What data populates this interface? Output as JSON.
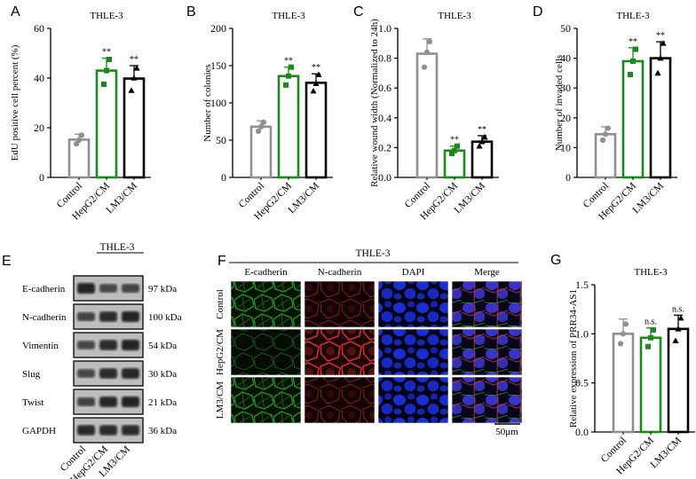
{
  "colors": {
    "control": "#909090",
    "hepg2": "#1a8a1a",
    "lm3": "#000000",
    "panel_label": "#000000"
  },
  "panel_labels": {
    "A": "A",
    "B": "B",
    "C": "C",
    "D": "D",
    "E": "E",
    "F": "F",
    "G": "G"
  },
  "chart_data": [
    {
      "panel": "A",
      "type": "bar",
      "title": "THLE-3",
      "categories": [
        "Control",
        "HepG2/CM",
        "LM3/CM"
      ],
      "values": [
        15.2,
        43.0,
        39.8
      ],
      "errors": [
        2.2,
        5.0,
        5.2
      ],
      "points": [
        [
          13.5,
          15.0,
          17.0
        ],
        [
          37.5,
          43.0,
          47.5
        ],
        [
          35.0,
          40.0,
          44.0
        ]
      ],
      "markers": [
        "circle",
        "square",
        "triangle"
      ],
      "significance": [
        "",
        "**",
        "**"
      ],
      "ylabel": "EdU positive cell percent (%)",
      "ylim": [
        0,
        60
      ],
      "yticks": [
        "0",
        "20",
        "40",
        "60"
      ],
      "grid": false
    },
    {
      "panel": "B",
      "type": "bar",
      "title": "THLE-3",
      "categories": [
        "Control",
        "HepG2/CM",
        "LM3/CM"
      ],
      "values": [
        68,
        136,
        127
      ],
      "errors": [
        8,
        12,
        12
      ],
      "points": [
        [
          62,
          68,
          74
        ],
        [
          124,
          136,
          148
        ],
        [
          116,
          126,
          138
        ]
      ],
      "markers": [
        "circle",
        "square",
        "triangle"
      ],
      "significance": [
        "",
        "**",
        "**"
      ],
      "ylabel": "Number of colonies",
      "ylim": [
        0,
        200
      ],
      "yticks": [
        "0",
        "50",
        "100",
        "150",
        "200"
      ],
      "grid": false
    },
    {
      "panel": "C",
      "type": "bar",
      "title": "THLE-3",
      "categories": [
        "Control",
        "HepG2/CM",
        "LM3/CM"
      ],
      "values": [
        0.83,
        0.18,
        0.24
      ],
      "errors": [
        0.1,
        0.03,
        0.04
      ],
      "points": [
        [
          0.74,
          0.84,
          0.91
        ],
        [
          0.16,
          0.18,
          0.21
        ],
        [
          0.21,
          0.24,
          0.27
        ]
      ],
      "markers": [
        "circle",
        "square",
        "triangle"
      ],
      "significance": [
        "",
        "**",
        "**"
      ],
      "ylabel": "Relative wound width (Normalized to 24h)",
      "ylim": [
        0,
        1.0
      ],
      "yticks": [
        "0.0",
        "0.2",
        "0.4",
        "0.6",
        "0.8",
        "1.0"
      ],
      "grid": false
    },
    {
      "panel": "D",
      "type": "bar",
      "title": "THLE-3",
      "categories": [
        "Control",
        "HepG2/CM",
        "LM3/CM"
      ],
      "values": [
        14.5,
        39,
        40
      ],
      "errors": [
        2.5,
        4.5,
        5.5
      ],
      "points": [
        [
          12.5,
          14.5,
          16.5
        ],
        [
          34.5,
          39,
          43.0
        ],
        [
          35.0,
          40,
          45.0
        ]
      ],
      "markers": [
        "circle",
        "square",
        "triangle"
      ],
      "significance": [
        "",
        "**",
        "**"
      ],
      "ylabel": "Number of invaded cells",
      "ylim": [
        0,
        50
      ],
      "yticks": [
        "0",
        "10",
        "20",
        "30",
        "40",
        "50"
      ],
      "grid": false
    },
    {
      "panel": "G",
      "type": "bar",
      "title": "THLE-3",
      "categories": [
        "Control",
        "HepG2/CM",
        "LM3/CM"
      ],
      "values": [
        1.0,
        0.96,
        1.05
      ],
      "errors": [
        0.15,
        0.1,
        0.14
      ],
      "points": [
        [
          0.9,
          1.0,
          1.1
        ],
        [
          0.87,
          0.96,
          1.04
        ],
        [
          0.93,
          1.05,
          1.16
        ]
      ],
      "markers": [
        "circle",
        "square",
        "triangle"
      ],
      "significance": [
        "",
        "n.s.",
        "n.s."
      ],
      "ylabel": "Relative expression of PRR34-AS1",
      "ylim": [
        0,
        1.5
      ],
      "yticks": [
        "0.0",
        "0.5",
        "1.0",
        "1.5"
      ],
      "grid": false
    }
  ],
  "western_blot": {
    "title": "THLE-3",
    "proteins": [
      "E-cadherin",
      "N-cadherin",
      "Vimentin",
      "Slug",
      "Twist",
      "GAPDH"
    ],
    "sizes": [
      "97 kDa",
      "100 kDa",
      "54 kDa",
      "30 kDa",
      "21 kDa",
      "36 kDa"
    ],
    "lanes": [
      "Control",
      "HepG2/CM",
      "LM3/CM"
    ],
    "band_intensity": [
      [
        1.0,
        0.55,
        0.6
      ],
      [
        0.6,
        0.9,
        1.0
      ],
      [
        0.55,
        0.9,
        1.0
      ],
      [
        0.55,
        0.9,
        0.95
      ],
      [
        0.6,
        0.95,
        1.0
      ],
      [
        0.9,
        0.9,
        0.9
      ]
    ]
  },
  "immunofluorescence": {
    "title": "THLE-3",
    "columns": [
      "E-cadherin",
      "N-cadherin",
      "DAPI",
      "Merge"
    ],
    "rows": [
      "Control",
      "HepG2/CM",
      "LM3/CM"
    ],
    "scale_bar": "50μm"
  }
}
